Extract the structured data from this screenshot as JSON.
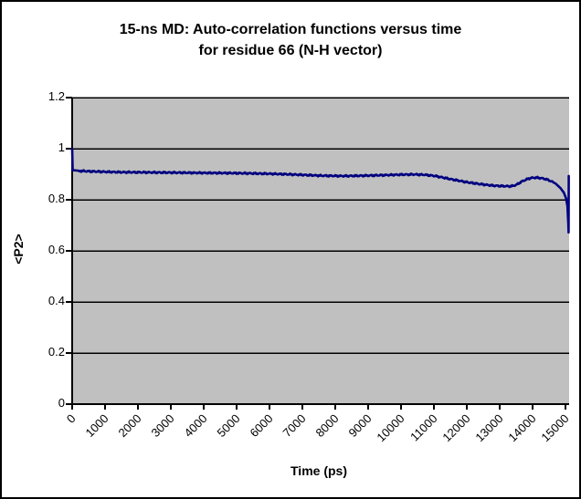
{
  "chart_data": {
    "type": "line",
    "title": "15-ns MD: Auto-correlation functions versus time for residue 66 (N-H vector)",
    "title_lines": [
      "15-ns MD: Auto-correlation functions versus time",
      "for residue 66 (N-H vector)"
    ],
    "xlabel": "Time (ps)",
    "ylabel": "<P2>",
    "xlim": [
      0,
      15000
    ],
    "ylim": [
      0,
      1.2
    ],
    "x_ticks": [
      0,
      1000,
      2000,
      3000,
      4000,
      5000,
      6000,
      7000,
      8000,
      9000,
      10000,
      11000,
      12000,
      13000,
      14000,
      15000
    ],
    "x_tick_labels": [
      "0",
      "1000",
      "2000",
      "3000",
      "4000",
      "5000",
      "6000",
      "7000",
      "8000",
      "9000",
      "10000",
      "11000",
      "12000",
      "13000",
      "14000",
      "15000"
    ],
    "y_ticks": [
      0,
      0.2,
      0.4,
      0.6,
      0.8,
      1,
      1.2
    ],
    "y_tick_labels": [
      "0",
      "0.2",
      "0.4",
      "0.6",
      "0.8",
      "1",
      "1.2"
    ],
    "grid": "horizontal",
    "legend": "none",
    "plot_bg_color": "#c0c0c0",
    "line_color": "#000080",
    "gridline_color": "#000000",
    "axis_color": "#000000",
    "series": [
      {
        "points": [
          [
            0,
            1.0
          ],
          [
            15,
            0.916
          ],
          [
            250,
            0.913
          ],
          [
            500,
            0.9115
          ],
          [
            750,
            0.9105
          ],
          [
            1000,
            0.9095
          ],
          [
            1500,
            0.908
          ],
          [
            2000,
            0.9075
          ],
          [
            2500,
            0.907
          ],
          [
            3000,
            0.9065
          ],
          [
            3500,
            0.9058
          ],
          [
            4000,
            0.9052
          ],
          [
            4500,
            0.9048
          ],
          [
            5000,
            0.9042
          ],
          [
            5500,
            0.9032
          ],
          [
            6000,
            0.9018
          ],
          [
            6500,
            0.9
          ],
          [
            7000,
            0.8975
          ],
          [
            7500,
            0.8948
          ],
          [
            8000,
            0.8935
          ],
          [
            8250,
            0.8932
          ],
          [
            8500,
            0.8935
          ],
          [
            9000,
            0.8948
          ],
          [
            9500,
            0.8965
          ],
          [
            10000,
            0.8985
          ],
          [
            10400,
            0.8992
          ],
          [
            10700,
            0.898
          ],
          [
            11000,
            0.894
          ],
          [
            11300,
            0.8865
          ],
          [
            11600,
            0.8785
          ],
          [
            12000,
            0.869
          ],
          [
            12400,
            0.8615
          ],
          [
            12800,
            0.8555
          ],
          [
            13100,
            0.8535
          ],
          [
            13350,
            0.853
          ],
          [
            13500,
            0.858
          ],
          [
            13650,
            0.87
          ],
          [
            13800,
            0.879
          ],
          [
            13950,
            0.8855
          ],
          [
            14100,
            0.8868
          ],
          [
            14250,
            0.885
          ],
          [
            14400,
            0.881
          ],
          [
            14550,
            0.8735
          ],
          [
            14700,
            0.8635
          ],
          [
            14850,
            0.8455
          ],
          [
            14950,
            0.828
          ],
          [
            15020,
            0.805
          ],
          [
            15060,
            0.775
          ],
          [
            15085,
            0.71
          ],
          [
            15095,
            0.672
          ],
          [
            15100,
            0.893
          ]
        ]
      }
    ]
  }
}
